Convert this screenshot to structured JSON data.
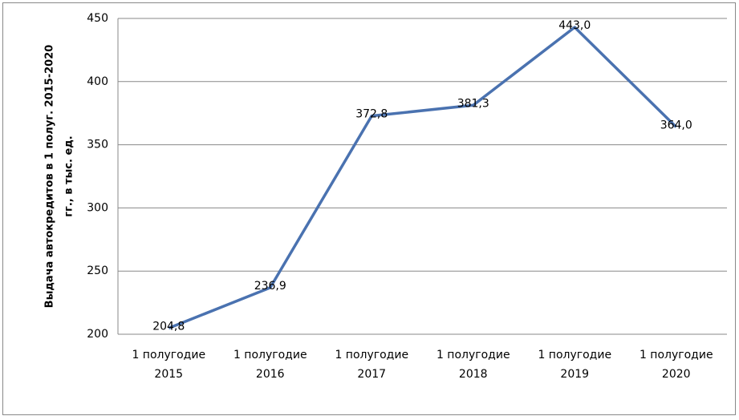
{
  "chart_data": {
    "type": "line",
    "y_label": [
      "Выдача автокредитов  в 1 полуг. 2015-2020",
      "гг., в  тыс. ед."
    ],
    "categories": [
      [
        "1 полугодие",
        "2015"
      ],
      [
        "1 полугодие",
        "2016"
      ],
      [
        "1 полугодие",
        "2017"
      ],
      [
        "1 полугодие",
        "2018"
      ],
      [
        "1 полугодие",
        "2019"
      ],
      [
        "1 полугодие",
        "2020"
      ]
    ],
    "values": [
      204.8,
      236.9,
      372.8,
      381.3,
      443.0,
      364.0
    ],
    "value_labels": [
      "204,8",
      "236,9",
      "372,8",
      "381,3",
      "443,0",
      "364,0"
    ],
    "color": "#4a72b0",
    "ylim": [
      200,
      450
    ],
    "yticks": [
      200,
      250,
      300,
      350,
      400,
      450
    ],
    "grid": true
  }
}
